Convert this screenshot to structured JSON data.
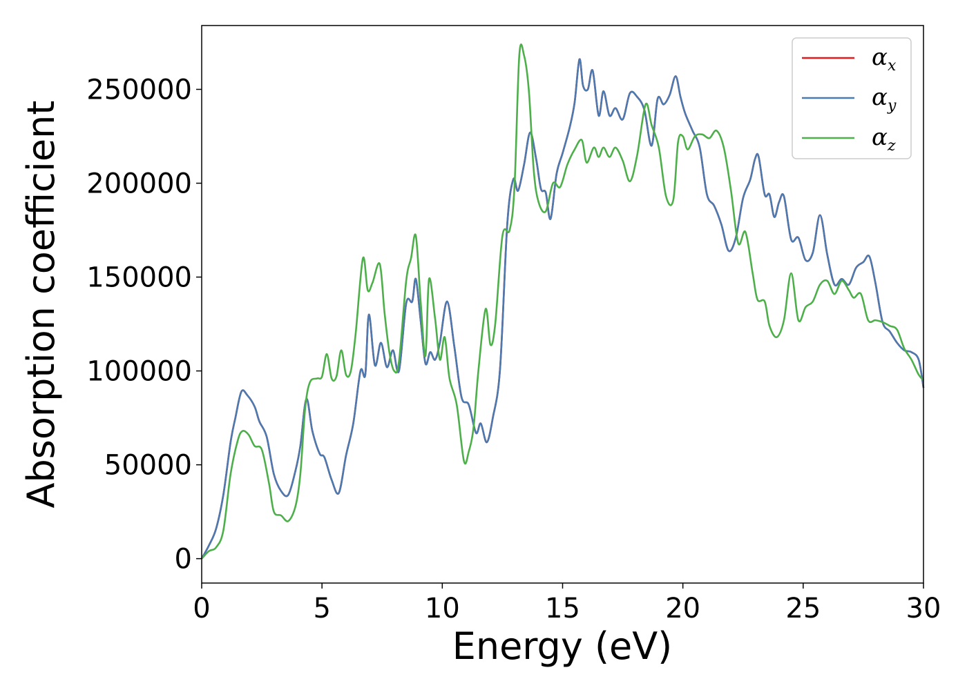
{
  "chart_data": {
    "type": "line",
    "title": "",
    "xlabel": "Energy (eV)",
    "ylabel": "Absorption coefficient",
    "xlim": [
      0,
      30
    ],
    "ylim": [
      -13000,
      284000
    ],
    "xticks": [
      0,
      5,
      10,
      15,
      20,
      25,
      30
    ],
    "yticks": [
      0,
      50000,
      100000,
      150000,
      200000,
      250000
    ],
    "grid": false,
    "legend_position": "top-right",
    "series": [
      {
        "name": "α",
        "subscript": "x",
        "color": "#e41a1c",
        "x": [
          0,
          0.3,
          0.6,
          0.9,
          1.2,
          1.4,
          1.65,
          1.9,
          2.2,
          2.4,
          2.7,
          3.0,
          3.3,
          3.6,
          3.9,
          4.1,
          4.35,
          4.6,
          4.9,
          5.1,
          5.4,
          5.7,
          6.0,
          6.3,
          6.6,
          6.8,
          6.95,
          7.2,
          7.45,
          7.7,
          7.95,
          8.2,
          8.5,
          8.75,
          8.9,
          9.1,
          9.3,
          9.5,
          9.7,
          9.9,
          10.2,
          10.5,
          10.8,
          11.1,
          11.4,
          11.6,
          11.85,
          12.1,
          12.4,
          12.7,
          12.95,
          13.15,
          13.4,
          13.65,
          13.9,
          14.1,
          14.3,
          14.5,
          14.75,
          15.0,
          15.3,
          15.5,
          15.7,
          15.85,
          16.05,
          16.25,
          16.5,
          16.7,
          16.95,
          17.2,
          17.5,
          17.8,
          18.1,
          18.4,
          18.7,
          18.95,
          19.2,
          19.45,
          19.7,
          19.9,
          20.1,
          20.4,
          20.7,
          21.0,
          21.3,
          21.6,
          21.9,
          22.2,
          22.5,
          22.8,
          23.0,
          23.15,
          23.4,
          23.6,
          23.8,
          24.0,
          24.2,
          24.5,
          24.8,
          25.1,
          25.4,
          25.7,
          26.0,
          26.3,
          26.6,
          26.9,
          27.2,
          27.5,
          27.75,
          28.0,
          28.3,
          28.6,
          28.9,
          29.2,
          29.5,
          29.8,
          30.0
        ],
        "values": [
          0,
          7000,
          16000,
          34000,
          62000,
          75000,
          89000,
          87000,
          81000,
          73000,
          65000,
          45000,
          36000,
          34000,
          47000,
          60000,
          85000,
          68000,
          56000,
          54000,
          42000,
          35000,
          55000,
          72000,
          100000,
          98000,
          130000,
          103000,
          115000,
          102000,
          111000,
          100000,
          136000,
          137000,
          149000,
          127000,
          104000,
          110000,
          106000,
          115000,
          137000,
          113000,
          86000,
          82000,
          67000,
          72000,
          62000,
          75000,
          101000,
          178000,
          202000,
          196000,
          210000,
          227000,
          213000,
          197000,
          195000,
          181000,
          205000,
          216000,
          230000,
          243000,
          266000,
          252000,
          250000,
          260000,
          236000,
          249000,
          236000,
          240000,
          234000,
          248000,
          246000,
          239000,
          220000,
          245000,
          242000,
          247000,
          257000,
          246000,
          237000,
          228000,
          219000,
          194000,
          188000,
          178000,
          164000,
          171000,
          192000,
          202000,
          213000,
          214000,
          194000,
          194000,
          182000,
          190000,
          193000,
          170000,
          171000,
          159000,
          163000,
          183000,
          162000,
          146000,
          149000,
          146000,
          155000,
          158000,
          161000,
          147000,
          126000,
          121000,
          115000,
          111000,
          110000,
          106000,
          91000
        ]
      },
      {
        "name": "α",
        "subscript": "y",
        "color": "#4a7ab0",
        "x": [
          0,
          0.3,
          0.6,
          0.9,
          1.2,
          1.4,
          1.65,
          1.9,
          2.2,
          2.4,
          2.7,
          3.0,
          3.3,
          3.6,
          3.9,
          4.1,
          4.35,
          4.6,
          4.9,
          5.1,
          5.4,
          5.7,
          6.0,
          6.3,
          6.6,
          6.8,
          6.95,
          7.2,
          7.45,
          7.7,
          7.95,
          8.2,
          8.5,
          8.75,
          8.9,
          9.1,
          9.3,
          9.5,
          9.7,
          9.9,
          10.2,
          10.5,
          10.8,
          11.1,
          11.4,
          11.6,
          11.85,
          12.1,
          12.4,
          12.7,
          12.95,
          13.15,
          13.4,
          13.65,
          13.9,
          14.1,
          14.3,
          14.5,
          14.75,
          15.0,
          15.3,
          15.5,
          15.7,
          15.85,
          16.05,
          16.25,
          16.5,
          16.7,
          16.95,
          17.2,
          17.5,
          17.8,
          18.1,
          18.4,
          18.7,
          18.95,
          19.2,
          19.45,
          19.7,
          19.9,
          20.1,
          20.4,
          20.7,
          21.0,
          21.3,
          21.6,
          21.9,
          22.2,
          22.5,
          22.8,
          23.0,
          23.15,
          23.4,
          23.6,
          23.8,
          24.0,
          24.2,
          24.5,
          24.8,
          25.1,
          25.4,
          25.7,
          26.0,
          26.3,
          26.6,
          26.9,
          27.2,
          27.5,
          27.75,
          28.0,
          28.3,
          28.6,
          28.9,
          29.2,
          29.5,
          29.8,
          30.0
        ],
        "values": [
          0,
          7000,
          16000,
          34000,
          62000,
          75000,
          89000,
          87000,
          81000,
          73000,
          65000,
          45000,
          36000,
          34000,
          47000,
          60000,
          85000,
          68000,
          56000,
          54000,
          42000,
          35000,
          55000,
          72000,
          100000,
          98000,
          130000,
          103000,
          115000,
          102000,
          111000,
          100000,
          136000,
          137000,
          149000,
          127000,
          104000,
          110000,
          106000,
          115000,
          137000,
          113000,
          86000,
          82000,
          67000,
          72000,
          62000,
          75000,
          101000,
          178000,
          202000,
          196000,
          210000,
          227000,
          213000,
          197000,
          195000,
          181000,
          205000,
          216000,
          230000,
          243000,
          266000,
          252000,
          250000,
          260000,
          236000,
          249000,
          236000,
          240000,
          234000,
          248000,
          246000,
          239000,
          220000,
          245000,
          242000,
          247000,
          257000,
          246000,
          237000,
          228000,
          219000,
          194000,
          188000,
          178000,
          164000,
          171000,
          192000,
          202000,
          213000,
          214000,
          194000,
          194000,
          182000,
          190000,
          193000,
          170000,
          171000,
          159000,
          163000,
          183000,
          162000,
          146000,
          149000,
          146000,
          155000,
          158000,
          161000,
          147000,
          126000,
          121000,
          115000,
          111000,
          110000,
          106000,
          91000
        ]
      },
      {
        "name": "α",
        "subscript": "z",
        "color": "#4daf4a",
        "x": [
          0,
          0.3,
          0.6,
          0.9,
          1.2,
          1.5,
          1.7,
          1.95,
          2.2,
          2.5,
          2.8,
          3.0,
          3.3,
          3.6,
          3.9,
          4.1,
          4.3,
          4.5,
          4.8,
          5.0,
          5.2,
          5.4,
          5.6,
          5.8,
          6.0,
          6.2,
          6.4,
          6.7,
          6.9,
          7.1,
          7.4,
          7.6,
          7.8,
          8.0,
          8.2,
          8.5,
          8.7,
          8.9,
          9.1,
          9.3,
          9.45,
          9.7,
          9.9,
          10.1,
          10.3,
          10.6,
          10.9,
          11.1,
          11.3,
          11.5,
          11.8,
          12.0,
          12.2,
          12.5,
          12.8,
          13.0,
          13.2,
          13.4,
          13.6,
          13.8,
          14.0,
          14.3,
          14.6,
          14.9,
          15.2,
          15.5,
          15.8,
          16.0,
          16.3,
          16.5,
          16.7,
          16.95,
          17.2,
          17.5,
          17.8,
          18.1,
          18.45,
          18.7,
          19.0,
          19.3,
          19.6,
          19.8,
          20.0,
          20.2,
          20.5,
          20.8,
          21.1,
          21.4,
          21.7,
          22.0,
          22.3,
          22.6,
          22.9,
          23.1,
          23.4,
          23.6,
          23.9,
          24.2,
          24.5,
          24.8,
          25.1,
          25.4,
          25.7,
          26.0,
          26.3,
          26.6,
          26.9,
          27.1,
          27.4,
          27.7,
          28.0,
          28.3,
          28.6,
          28.9,
          29.2,
          29.5,
          29.8,
          30.0
        ],
        "values": [
          0,
          4000,
          6000,
          15000,
          45000,
          63000,
          68000,
          66000,
          60000,
          58000,
          40000,
          25000,
          23000,
          20000,
          28000,
          45000,
          80000,
          94000,
          96000,
          97000,
          109000,
          96000,
          97000,
          111000,
          98000,
          100000,
          120000,
          160000,
          143000,
          147000,
          157000,
          131000,
          110000,
          100000,
          105000,
          148000,
          160000,
          172000,
          137000,
          108000,
          149000,
          128000,
          106000,
          118000,
          96000,
          82000,
          52000,
          57000,
          70000,
          100000,
          133000,
          114000,
          125000,
          172000,
          175000,
          198000,
          268000,
          268000,
          249000,
          207000,
          190000,
          185000,
          200000,
          198000,
          210000,
          218000,
          223000,
          211000,
          219000,
          214000,
          219000,
          214000,
          219000,
          212000,
          201000,
          215000,
          242000,
          231000,
          219000,
          193000,
          191000,
          222000,
          225000,
          218000,
          225000,
          226000,
          224000,
          228000,
          219000,
          196000,
          168000,
          174000,
          152000,
          138000,
          137000,
          124000,
          118000,
          127000,
          152000,
          127000,
          134000,
          137000,
          146000,
          148000,
          141000,
          148000,
          143000,
          139000,
          141000,
          127000,
          127000,
          126000,
          124000,
          122000,
          112000,
          106000,
          98000,
          95000
        ]
      }
    ]
  }
}
